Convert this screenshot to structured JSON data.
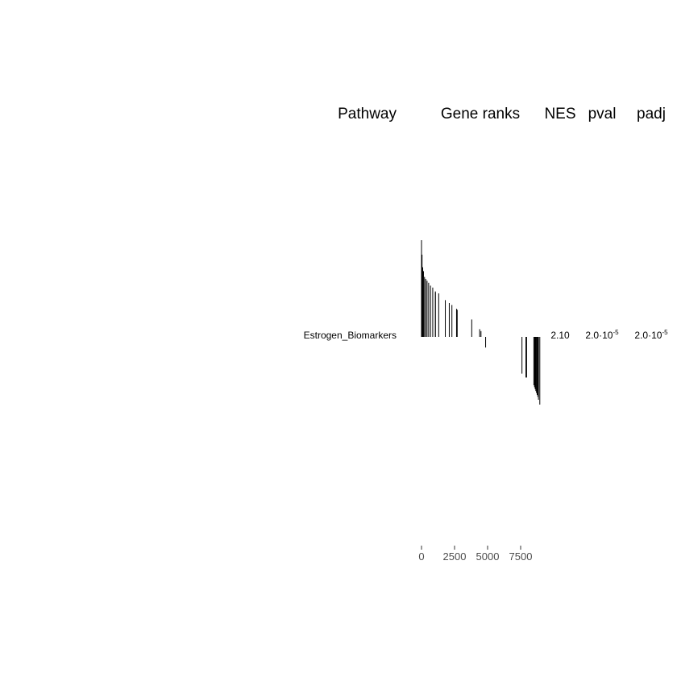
{
  "chart_data": {
    "type": "gsea-table-plot",
    "headers": {
      "pathway": "Pathway",
      "gene_ranks": "Gene ranks",
      "nes": "NES",
      "pval": "pval",
      "padj": "padj"
    },
    "rows": [
      {
        "pathway": "Estrogen_Biomarkers",
        "nes": "2.10",
        "pval": {
          "mantissa": "2.0·10",
          "exponent": "-5"
        },
        "padj": {
          "mantissa": "2.0·10",
          "exponent": "-5"
        },
        "gene_ranks": [
          {
            "rank": 0,
            "stat": 1.0
          },
          {
            "rank": 40,
            "stat": 0.85
          },
          {
            "rank": 90,
            "stat": 0.72
          },
          {
            "rank": 150,
            "stat": 0.68
          },
          {
            "rank": 230,
            "stat": 0.62
          },
          {
            "rank": 320,
            "stat": 0.6
          },
          {
            "rank": 420,
            "stat": 0.58
          },
          {
            "rank": 540,
            "stat": 0.56
          },
          {
            "rank": 680,
            "stat": 0.53
          },
          {
            "rank": 850,
            "stat": 0.51
          },
          {
            "rank": 1050,
            "stat": 0.47
          },
          {
            "rank": 1050,
            "stat": 0.46
          },
          {
            "rank": 1300,
            "stat": 0.45
          },
          {
            "rank": 1800,
            "stat": 0.38
          },
          {
            "rank": 2100,
            "stat": 0.35
          },
          {
            "rank": 2300,
            "stat": 0.33
          },
          {
            "rank": 2650,
            "stat": 0.29
          },
          {
            "rank": 2700,
            "stat": 0.28
          },
          {
            "rank": 3800,
            "stat": 0.18
          },
          {
            "rank": 4400,
            "stat": 0.08
          },
          {
            "rank": 4500,
            "stat": 0.06
          },
          {
            "rank": 4850,
            "stat": -0.11
          },
          {
            "rank": 7600,
            "stat": -0.38
          },
          {
            "rank": 7900,
            "stat": -0.42
          },
          {
            "rank": 7950,
            "stat": -0.42
          },
          {
            "rank": 8500,
            "stat": -0.5
          },
          {
            "rank": 8550,
            "stat": -0.52
          },
          {
            "rank": 8600,
            "stat": -0.54
          },
          {
            "rank": 8650,
            "stat": -0.56
          },
          {
            "rank": 8700,
            "stat": -0.58
          },
          {
            "rank": 8750,
            "stat": -0.6
          },
          {
            "rank": 8800,
            "stat": -0.62
          },
          {
            "rank": 8850,
            "stat": -0.65
          },
          {
            "rank": 8950,
            "stat": -0.7
          }
        ]
      }
    ],
    "x_axis": {
      "ticks": [
        0,
        2500,
        5000,
        7500
      ],
      "tick_labels": [
        "0",
        "2500",
        "5000",
        "7500"
      ],
      "range": [
        0,
        9000
      ]
    },
    "colors": {
      "text": "#000000",
      "axis_text": "#4d4d4d",
      "bar": "#000000"
    }
  }
}
